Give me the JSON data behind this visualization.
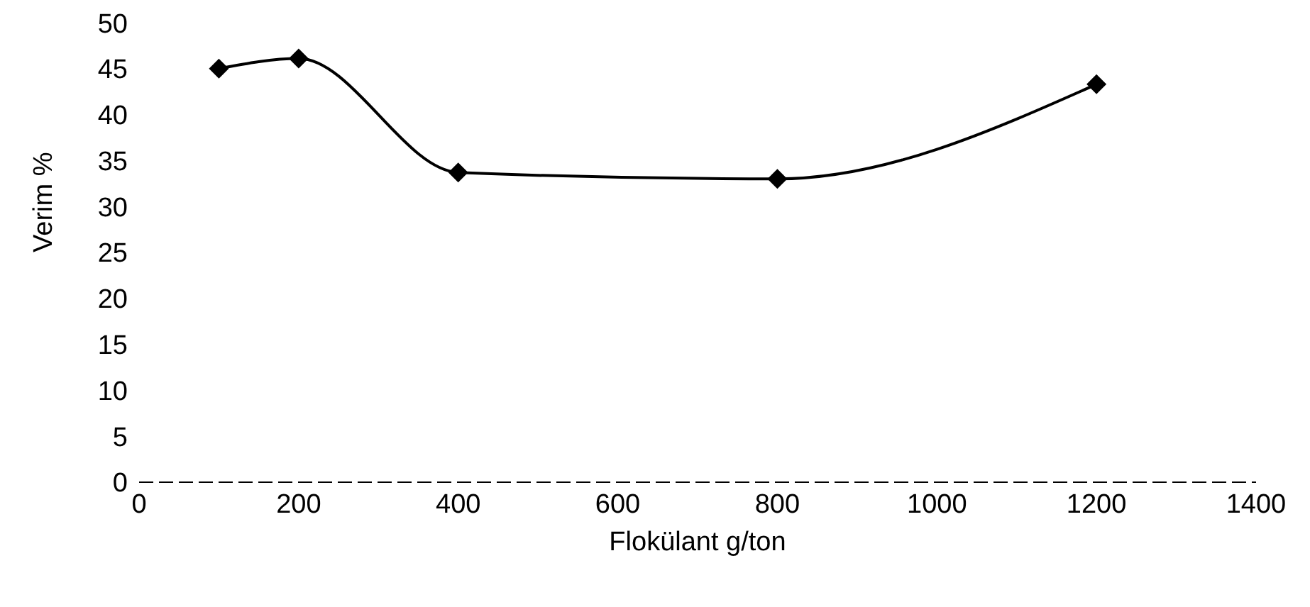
{
  "chart_data": {
    "type": "line",
    "xlabel": "Flokülant g/ton",
    "ylabel": "Verim  %",
    "x": [
      100,
      200,
      400,
      800,
      1200
    ],
    "series": [
      {
        "color": "#000000",
        "values": [
          45,
          46.1,
          33.7,
          33,
          43.3
        ]
      }
    ],
    "xlim": [
      0,
      1400
    ],
    "xticks": [
      0,
      200,
      400,
      600,
      800,
      1000,
      1200,
      1400
    ],
    "ylim": [
      0,
      50
    ],
    "yticks": [
      0,
      5,
      10,
      15,
      20,
      25,
      30,
      35,
      40,
      45,
      50
    ],
    "marker": "diamond",
    "line_style": "solid",
    "grid": false,
    "legend": false
  }
}
